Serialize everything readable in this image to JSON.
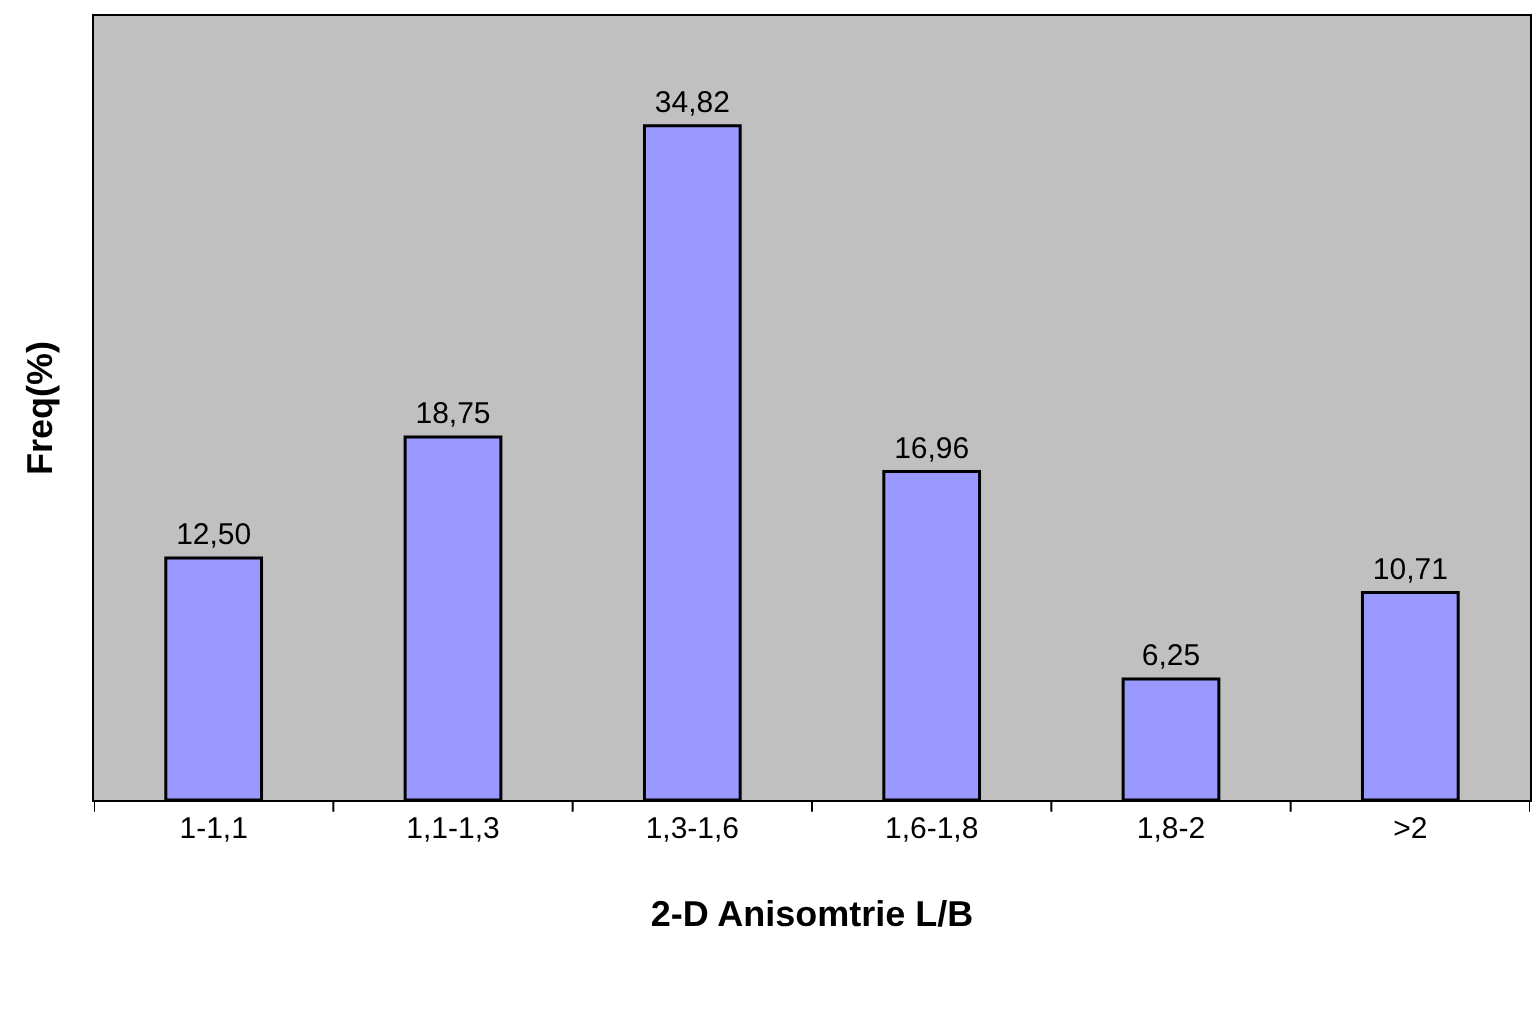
{
  "chart_data": {
    "type": "bar",
    "xlabel": "2-D Anisomtrie L/B",
    "ylabel": "Freq(%)",
    "categories": [
      "1-1,1",
      "1,1-1,3",
      "1,3-1,6",
      "1,6-1,8",
      "1,8-2",
      ">2"
    ],
    "values": [
      12.5,
      18.75,
      34.82,
      16.96,
      6.25,
      10.71
    ],
    "value_labels": [
      "12,50",
      "18,75",
      "34,82",
      "16,96",
      "6,25",
      "10,71"
    ],
    "color": "#9999ff",
    "grid": false,
    "tick_labels": "x"
  }
}
